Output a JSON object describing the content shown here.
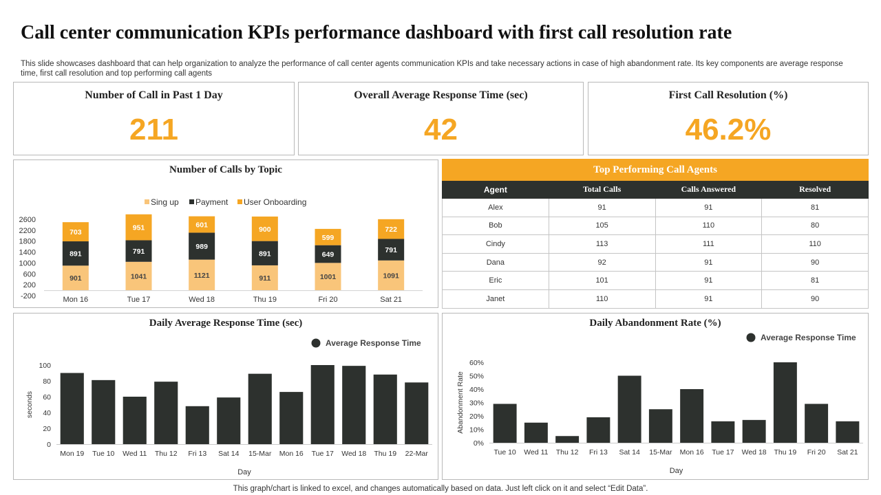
{
  "header": {
    "title": "Call center communication KPIs performance dashboard with first call resolution rate",
    "description": "This slide showcases dashboard that can help organization to analyze the performance of call center agents communication KPIs  and take necessary actions in case of high abandonment rate. Its key components are average response time, first call resolution and top performing call agents"
  },
  "kpis": [
    {
      "label": "Number  of Call in Past 1 Day",
      "value": "211"
    },
    {
      "label": "Overall Average Response Time (sec)",
      "value": "42"
    },
    {
      "label": "First Call Resolution (%)",
      "value": "46.2%"
    }
  ],
  "colors": {
    "accent": "#f5a623",
    "light_orange": "#f9c57a",
    "dark": "#2d312e",
    "grid": "#d9d9d9"
  },
  "agents_table": {
    "title": "Top Performing  Call Agents",
    "columns": [
      "Agent",
      "Total  Calls",
      "Calls Answered",
      "Resolved"
    ],
    "rows": [
      [
        "Alex",
        "91",
        "91",
        "81"
      ],
      [
        "Bob",
        "105",
        "110",
        "80"
      ],
      [
        "Cindy",
        "113",
        "111",
        "110"
      ],
      [
        "Dana",
        "92",
        "91",
        "90"
      ],
      [
        "Eric",
        "101",
        "91",
        "81"
      ],
      [
        "Janet",
        "110",
        "91",
        "90"
      ]
    ]
  },
  "chart_data": [
    {
      "type": "bar",
      "stacked": true,
      "title": "Number  of Calls by Topic",
      "categories": [
        "Mon 16",
        "Tue 17",
        "Wed 18",
        "Thu 19",
        "Fri 20",
        "Sat 21"
      ],
      "series": [
        {
          "name": "Sing up",
          "color": "#f9c57a",
          "values": [
            901,
            1041,
            1121,
            911,
            1001,
            1091
          ]
        },
        {
          "name": "Payment",
          "color": "#2d312e",
          "values": [
            891,
            791,
            989,
            891,
            649,
            791
          ]
        },
        {
          "name": "User Onboarding",
          "color": "#f5a623",
          "values": [
            703,
            951,
            601,
            900,
            599,
            722
          ]
        }
      ],
      "yticks": [
        -200,
        200,
        600,
        1000,
        1400,
        1800,
        2200,
        2600
      ],
      "ylim": [
        -200,
        2600
      ],
      "legend": "top"
    },
    {
      "type": "bar",
      "title": "Daily Average Response Time (sec)",
      "legend_label": "Average Response Time",
      "categories": [
        "Mon 19",
        "Tue 10",
        "Wed 11",
        "Thu 12",
        "Fri 13",
        "Sat 14",
        "15-Mar",
        "Mon 16",
        "Tue 17",
        "Wed 18",
        "Thu 19",
        "22-Mar"
      ],
      "values": [
        90,
        81,
        60,
        79,
        48,
        59,
        89,
        66,
        100,
        99,
        88,
        78
      ],
      "xlabel": "Day",
      "ylabel": "seconds",
      "yticks": [
        0,
        20,
        40,
        60,
        80,
        100
      ],
      "ylim": [
        0,
        100
      ],
      "legend": "top-right"
    },
    {
      "type": "bar",
      "title": "Daily Abandonment  Rate (%)",
      "legend_label": "Average Response Time",
      "categories": [
        "Tue 10",
        "Wed 11",
        "Thu 12",
        "Fri 13",
        "Sat 14",
        "15-Mar",
        "Mon 16",
        "Tue 17",
        "Wed 18",
        "Thu 19",
        "Fri 20",
        "Sat 21"
      ],
      "values": [
        29,
        15,
        5,
        19,
        50,
        25,
        40,
        16,
        17,
        60,
        29,
        16
      ],
      "xlabel": "Day",
      "ylabel": "Abandonment Rate",
      "yticks": [
        "0%",
        "10%",
        "20%",
        "30%",
        "40%",
        "50%",
        "60%"
      ],
      "ylim": [
        0,
        60
      ],
      "legend": "top-right"
    }
  ],
  "footer": {
    "note": "This graph/chart is linked to excel,  and changes automatically based on data. Just left click on it and select “Edit Data”."
  }
}
